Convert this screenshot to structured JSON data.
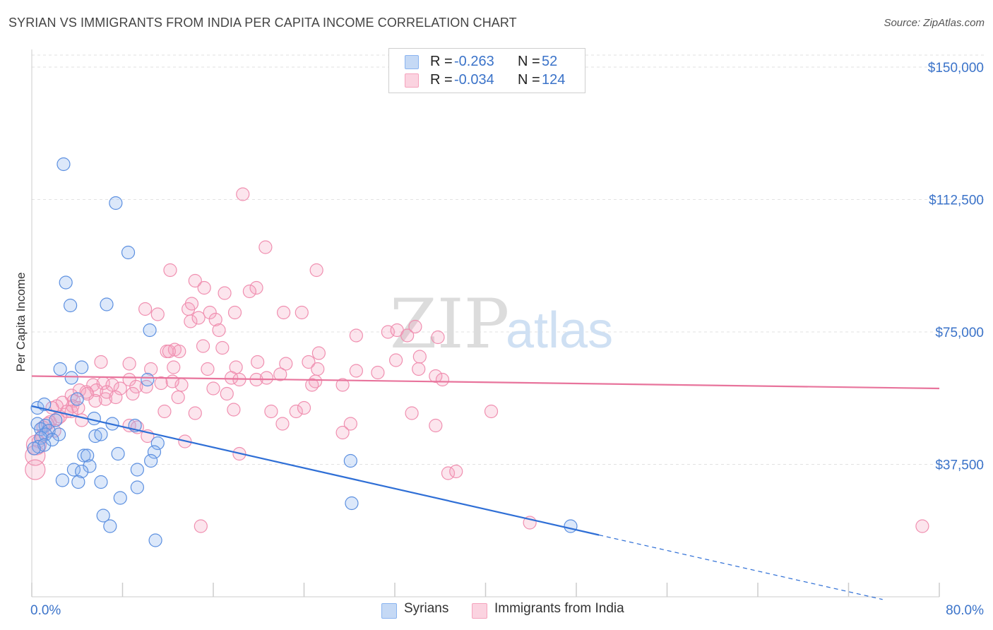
{
  "title": "SYRIAN VS IMMIGRANTS FROM INDIA PER CAPITA INCOME CORRELATION CHART",
  "source": "Source: ZipAtlas.com",
  "watermark": {
    "zip": "ZIP",
    "atlas": "atlas"
  },
  "legend": {
    "r_label": "R =",
    "n_label": "N =",
    "rows": [
      {
        "r": "-0.263",
        "n": "52",
        "color": "#8ab4f0"
      },
      {
        "r": "-0.034",
        "n": "124",
        "color": "#f5a3bd"
      }
    ]
  },
  "bottom_legend": [
    "Syrians",
    "Immigrants from India"
  ],
  "chart_data": {
    "type": "scatter",
    "ylabel": "Per Capita Income",
    "x_tick_labels": [
      "0.0%",
      "80.0%"
    ],
    "y_tick_labels": [
      "$150,000",
      "$112,500",
      "$75,000",
      "$37,500"
    ],
    "xlim": [
      0,
      80
    ],
    "ylim": [
      0,
      155000
    ],
    "y_ticks": [
      150000,
      112500,
      75000,
      37500
    ],
    "grid": true,
    "colors": {
      "syrians": "#5b8fe0",
      "india": "#f08fb0",
      "syrians_line": "#2f6fd6",
      "india_line": "#e8749c",
      "axis_label": "#3b73c9"
    },
    "series": [
      {
        "name": "Syrians",
        "points": [
          [
            2.8,
            122500
          ],
          [
            7.4,
            111500
          ],
          [
            8.5,
            97500
          ],
          [
            3.0,
            89000
          ],
          [
            3.4,
            82500
          ],
          [
            6.6,
            82800
          ],
          [
            10.4,
            75500
          ],
          [
            2.5,
            64500
          ],
          [
            4.4,
            65000
          ],
          [
            3.5,
            62000
          ],
          [
            10.2,
            61500
          ],
          [
            0.5,
            53500
          ],
          [
            1.1,
            54500
          ],
          [
            4.0,
            56000
          ],
          [
            2.1,
            50000
          ],
          [
            0.5,
            49000
          ],
          [
            1.2,
            48500
          ],
          [
            0.8,
            47500
          ],
          [
            1.5,
            47000
          ],
          [
            1.2,
            46000
          ],
          [
            2.4,
            46000
          ],
          [
            0.8,
            45000
          ],
          [
            1.8,
            44500
          ],
          [
            5.5,
            50500
          ],
          [
            7.1,
            49000
          ],
          [
            9.1,
            48500
          ],
          [
            5.6,
            45500
          ],
          [
            6.1,
            46000
          ],
          [
            11.1,
            43500
          ],
          [
            0.6,
            42500
          ],
          [
            1.1,
            43000
          ],
          [
            10.8,
            41000
          ],
          [
            4.6,
            40000
          ],
          [
            4.9,
            40000
          ],
          [
            7.6,
            40500
          ],
          [
            5.1,
            37000
          ],
          [
            10.5,
            38500
          ],
          [
            3.7,
            36000
          ],
          [
            4.4,
            35500
          ],
          [
            9.3,
            36000
          ],
          [
            2.7,
            33000
          ],
          [
            4.1,
            32500
          ],
          [
            6.1,
            32500
          ],
          [
            9.3,
            31000
          ],
          [
            7.8,
            28000
          ],
          [
            28.1,
            38500
          ],
          [
            6.3,
            23000
          ],
          [
            28.2,
            26500
          ],
          [
            6.9,
            20000
          ],
          [
            10.9,
            16000
          ],
          [
            47.5,
            20000
          ],
          [
            0.2,
            42000
          ]
        ]
      },
      {
        "name": "Immigrants from India",
        "points": [
          [
            18.6,
            114000
          ],
          [
            20.6,
            99000
          ],
          [
            12.2,
            92500
          ],
          [
            25.1,
            92500
          ],
          [
            14.4,
            89500
          ],
          [
            15.2,
            87500
          ],
          [
            17.0,
            86000
          ],
          [
            19.8,
            87500
          ],
          [
            19.2,
            86500
          ],
          [
            10.0,
            81500
          ],
          [
            13.8,
            81500
          ],
          [
            11.1,
            80000
          ],
          [
            14.1,
            83000
          ],
          [
            15.7,
            80500
          ],
          [
            17.9,
            80500
          ],
          [
            22.2,
            80500
          ],
          [
            23.8,
            80500
          ],
          [
            14.0,
            78000
          ],
          [
            14.7,
            79000
          ],
          [
            16.2,
            78500
          ],
          [
            16.5,
            75500
          ],
          [
            31.4,
            75000
          ],
          [
            32.2,
            75500
          ],
          [
            33.1,
            74000
          ],
          [
            33.8,
            76500
          ],
          [
            28.6,
            74000
          ],
          [
            35.8,
            73500
          ],
          [
            16.8,
            70500
          ],
          [
            11.9,
            69500
          ],
          [
            12.6,
            70000
          ],
          [
            13.0,
            69500
          ],
          [
            12.1,
            69500
          ],
          [
            25.3,
            69000
          ],
          [
            15.1,
            71000
          ],
          [
            32.1,
            67000
          ],
          [
            34.2,
            68000
          ],
          [
            24.4,
            66500
          ],
          [
            22.4,
            66000
          ],
          [
            19.9,
            66500
          ],
          [
            6.1,
            66500
          ],
          [
            8.6,
            66000
          ],
          [
            10.5,
            64500
          ],
          [
            12.5,
            65000
          ],
          [
            15.5,
            64500
          ],
          [
            18.0,
            65000
          ],
          [
            25.2,
            64500
          ],
          [
            28.6,
            64000
          ],
          [
            34.1,
            64500
          ],
          [
            35.6,
            62500
          ],
          [
            36.2,
            61500
          ],
          [
            17.6,
            62000
          ],
          [
            18.3,
            61500
          ],
          [
            19.8,
            61500
          ],
          [
            21.9,
            63000
          ],
          [
            25.0,
            61000
          ],
          [
            6.3,
            60500
          ],
          [
            7.1,
            60000
          ],
          [
            8.6,
            61500
          ],
          [
            9.2,
            59500
          ],
          [
            10.1,
            59500
          ],
          [
            11.4,
            60500
          ],
          [
            13.2,
            60000
          ],
          [
            5.4,
            60000
          ],
          [
            4.2,
            58500
          ],
          [
            4.8,
            58000
          ],
          [
            5.7,
            58500
          ],
          [
            7.8,
            59000
          ],
          [
            8.9,
            57500
          ],
          [
            16.0,
            59000
          ],
          [
            17.2,
            57500
          ],
          [
            27.4,
            60000
          ],
          [
            3.5,
            57000
          ],
          [
            3.7,
            55500
          ],
          [
            6.5,
            56000
          ],
          [
            12.9,
            56500
          ],
          [
            3.6,
            54000
          ],
          [
            2.7,
            55000
          ],
          [
            2.2,
            54000
          ],
          [
            1.8,
            53500
          ],
          [
            3.5,
            52500
          ],
          [
            5.6,
            55500
          ],
          [
            11.7,
            52500
          ],
          [
            14.4,
            52000
          ],
          [
            17.8,
            53000
          ],
          [
            21.1,
            52500
          ],
          [
            23.3,
            52500
          ],
          [
            24.0,
            53500
          ],
          [
            33.5,
            52000
          ],
          [
            40.5,
            52500
          ],
          [
            2.3,
            50500
          ],
          [
            1.6,
            49500
          ],
          [
            4.4,
            50000
          ],
          [
            8.6,
            48500
          ],
          [
            9.3,
            48000
          ],
          [
            22.1,
            49000
          ],
          [
            28.1,
            49000
          ],
          [
            35.6,
            48500
          ],
          [
            27.4,
            46500
          ],
          [
            1.0,
            48000
          ],
          [
            10.2,
            45500
          ],
          [
            13.5,
            44000
          ],
          [
            0.9,
            45500
          ],
          [
            0.6,
            44000
          ],
          [
            0.4,
            43000
          ],
          [
            0.3,
            40000
          ],
          [
            18.3,
            40500
          ],
          [
            0.3,
            36000
          ],
          [
            36.7,
            35000
          ],
          [
            37.4,
            35500
          ],
          [
            14.9,
            20000
          ],
          [
            43.9,
            21000
          ],
          [
            78.5,
            20000
          ],
          [
            2.0,
            47000
          ],
          [
            1.4,
            49000
          ],
          [
            2.5,
            51000
          ],
          [
            3.1,
            52500
          ],
          [
            4.1,
            53500
          ],
          [
            4.9,
            57500
          ],
          [
            6.6,
            58000
          ],
          [
            7.4,
            56500
          ],
          [
            12.4,
            61000
          ],
          [
            20.7,
            62000
          ],
          [
            24.7,
            60000
          ],
          [
            30.5,
            63500
          ]
        ]
      }
    ],
    "trendlines": [
      {
        "series": "Syrians",
        "x": [
          0,
          50
        ],
        "y": [
          54000,
          17500
        ],
        "dashed_extension_to_x": 75
      },
      {
        "series": "Immigrants from India",
        "x": [
          0,
          80
        ],
        "y": [
          62500,
          59000
        ]
      }
    ]
  }
}
